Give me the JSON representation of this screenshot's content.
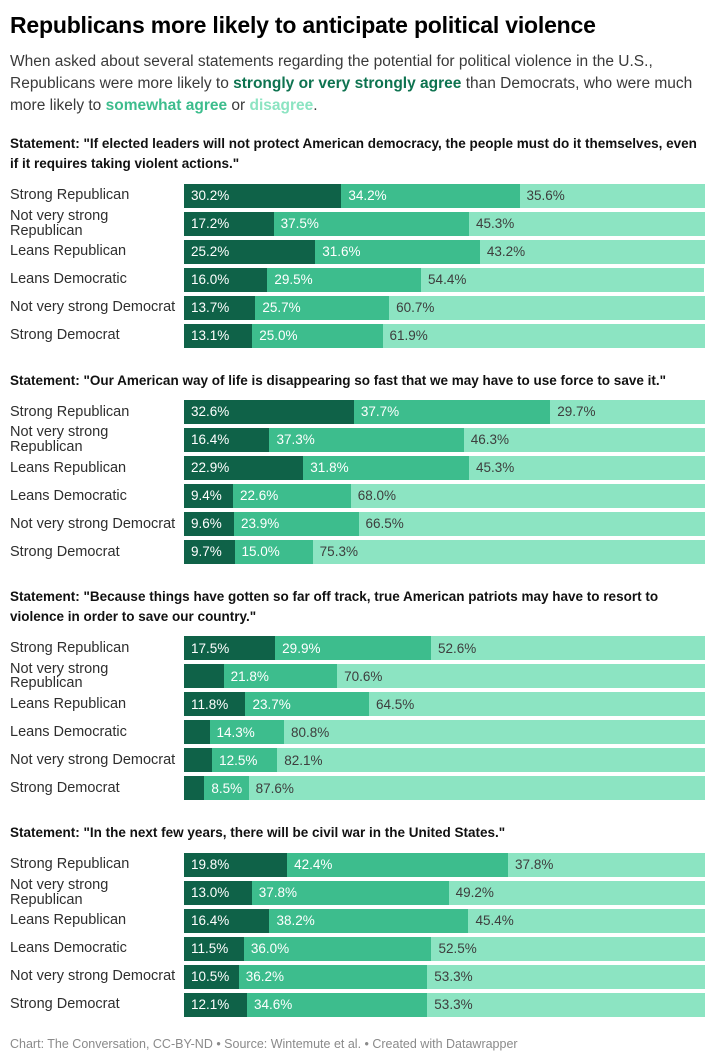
{
  "title": "Republicans more likely to anticipate political violence",
  "subtitle": {
    "pre": "When asked about several statements regarding the potential for political violence in the U.S., Republicans were more likely to ",
    "strong_label": "strongly or very strongly agree",
    "mid": " than Democrats, who were much more likely to ",
    "somewhat_label": "somewhat agree",
    "or_text": " or ",
    "disagree_label": "disagree",
    "end": "."
  },
  "colors": {
    "strong_agree": "#0f6248",
    "somewhat_agree": "#3dbd8d",
    "disagree": "#8ce4c2",
    "strong_text": "#0e7350",
    "somewhat_text": "#3dbd8d",
    "disagree_text": "#8ce4c2"
  },
  "footer": "Chart: The Conversation, CC-BY-ND • Source: Wintemute et al. • Created with Datawrapper",
  "chart_data": {
    "type": "bar",
    "stacked": true,
    "orientation": "horizontal",
    "xlim": [
      0,
      100
    ],
    "grid": false,
    "legend": "inline-in-subtitle",
    "series_names": [
      "Strongly or very strongly agree",
      "Somewhat agree",
      "Disagree"
    ],
    "categories": [
      "Strong Republican",
      "Not very strong Republican",
      "Leans Republican",
      "Leans Democratic",
      "Not very strong Democrat",
      "Strong Democrat"
    ],
    "sections": [
      {
        "statement": "Statement: \"If elected leaders will not protect American democracy, the people must do it themselves, even if it requires taking violent actions.\"",
        "rows": [
          {
            "label": "Strong Republican",
            "values": [
              30.2,
              34.2,
              35.6
            ],
            "labels": [
              "30.2%",
              "34.2%",
              "35.6%"
            ]
          },
          {
            "label": "Not very strong Republican",
            "values": [
              17.2,
              37.5,
              45.3
            ],
            "labels": [
              "17.2%",
              "37.5%",
              "45.3%"
            ]
          },
          {
            "label": "Leans Republican",
            "values": [
              25.2,
              31.6,
              43.2
            ],
            "labels": [
              "25.2%",
              "31.6%",
              "43.2%"
            ]
          },
          {
            "label": "Leans Democratic",
            "values": [
              16.0,
              29.5,
              54.4
            ],
            "labels": [
              "16.0%",
              "29.5%",
              "54.4%"
            ]
          },
          {
            "label": "Not very strong Democrat",
            "values": [
              13.7,
              25.7,
              60.7
            ],
            "labels": [
              "13.7%",
              "25.7%",
              "60.7%"
            ]
          },
          {
            "label": "Strong Democrat",
            "values": [
              13.1,
              25.0,
              61.9
            ],
            "labels": [
              "13.1%",
              "25.0%",
              "61.9%"
            ]
          }
        ]
      },
      {
        "statement": "Statement: \"Our American way of life is disappearing so fast that we may have to use force to save it.\"",
        "rows": [
          {
            "label": "Strong Republican",
            "values": [
              32.6,
              37.7,
              29.7
            ],
            "labels": [
              "32.6%",
              "37.7%",
              "29.7%"
            ]
          },
          {
            "label": "Not very strong Republican",
            "values": [
              16.4,
              37.3,
              46.3
            ],
            "labels": [
              "16.4%",
              "37.3%",
              "46.3%"
            ]
          },
          {
            "label": "Leans Republican",
            "values": [
              22.9,
              31.8,
              45.3
            ],
            "labels": [
              "22.9%",
              "31.8%",
              "45.3%"
            ]
          },
          {
            "label": "Leans Democratic",
            "values": [
              9.4,
              22.6,
              68.0
            ],
            "labels": [
              "9.4%",
              "22.6%",
              "68.0%"
            ]
          },
          {
            "label": "Not very strong Democrat",
            "values": [
              9.6,
              23.9,
              66.5
            ],
            "labels": [
              "9.6%",
              "23.9%",
              "66.5%"
            ]
          },
          {
            "label": "Strong Democrat",
            "values": [
              9.7,
              15.0,
              75.3
            ],
            "labels": [
              "9.7%",
              "15.0%",
              "75.3%"
            ]
          }
        ]
      },
      {
        "statement": "Statement: \"Because things have gotten so far off track, true American patriots may have to resort to violence in order to save our country.\"",
        "rows": [
          {
            "label": "Strong Republican",
            "values": [
              17.5,
              29.9,
              52.6
            ],
            "labels": [
              "17.5%",
              "29.9%",
              "52.6%"
            ]
          },
          {
            "label": "Not very strong Republican",
            "values": [
              7.6,
              21.8,
              70.6
            ],
            "labels": [
              null,
              "21.8%",
              "70.6%"
            ]
          },
          {
            "label": "Leans Republican",
            "values": [
              11.8,
              23.7,
              64.5
            ],
            "labels": [
              "11.8%",
              "23.7%",
              "64.5%"
            ]
          },
          {
            "label": "Leans Democratic",
            "values": [
              4.9,
              14.3,
              80.8
            ],
            "labels": [
              null,
              "14.3%",
              "80.8%"
            ]
          },
          {
            "label": "Not very strong Democrat",
            "values": [
              5.4,
              12.5,
              82.1
            ],
            "labels": [
              null,
              "12.5%",
              "82.1%"
            ]
          },
          {
            "label": "Strong Democrat",
            "values": [
              3.9,
              8.5,
              87.6
            ],
            "labels": [
              null,
              "8.5%",
              "87.6%"
            ]
          }
        ]
      },
      {
        "statement": "Statement: \"In the next few years, there will be civil war in the United States.\"",
        "rows": [
          {
            "label": "Strong Republican",
            "values": [
              19.8,
              42.4,
              37.8
            ],
            "labels": [
              "19.8%",
              "42.4%",
              "37.8%"
            ]
          },
          {
            "label": "Not very strong Republican",
            "values": [
              13.0,
              37.8,
              49.2
            ],
            "labels": [
              "13.0%",
              "37.8%",
              "49.2%"
            ]
          },
          {
            "label": "Leans Republican",
            "values": [
              16.4,
              38.2,
              45.4
            ],
            "labels": [
              "16.4%",
              "38.2%",
              "45.4%"
            ]
          },
          {
            "label": "Leans Democratic",
            "values": [
              11.5,
              36.0,
              52.5
            ],
            "labels": [
              "11.5%",
              "36.0%",
              "52.5%"
            ]
          },
          {
            "label": "Not very strong Democrat",
            "values": [
              10.5,
              36.2,
              53.3
            ],
            "labels": [
              "10.5%",
              "36.2%",
              "53.3%"
            ]
          },
          {
            "label": "Strong Democrat",
            "values": [
              12.1,
              34.6,
              53.3
            ],
            "labels": [
              "12.1%",
              "34.6%",
              "53.3%"
            ]
          }
        ]
      }
    ]
  }
}
